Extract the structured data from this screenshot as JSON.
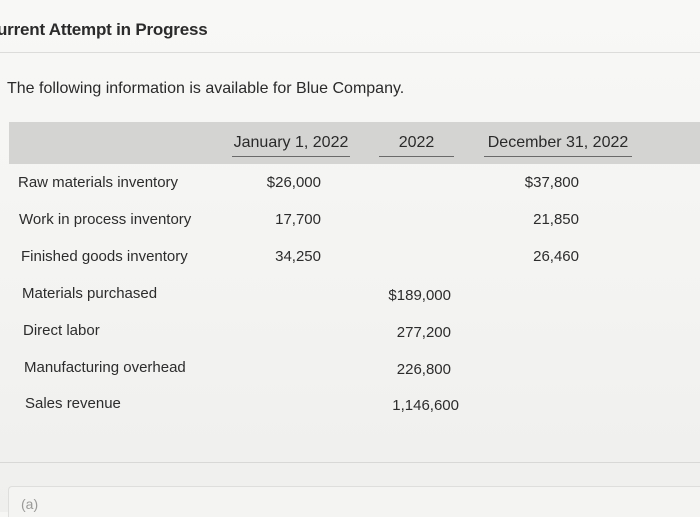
{
  "header": {
    "title": "urrent Attempt in Progress"
  },
  "intro_text": "The following information is available for Blue Company.",
  "table": {
    "columns": [
      "January 1, 2022",
      "2022",
      "December 31, 2022"
    ],
    "rows": [
      {
        "label": "Raw materials inventory",
        "jan": "$26,000",
        "year": "",
        "dec": "$37,800"
      },
      {
        "label": "Work in process inventory",
        "jan": "17,700",
        "year": "",
        "dec": "21,850"
      },
      {
        "label": "Finished goods inventory",
        "jan": "34,250",
        "year": "",
        "dec": "26,460"
      },
      {
        "label": "Materials purchased",
        "jan": "",
        "year": "$189,000",
        "dec": ""
      },
      {
        "label": "Direct labor",
        "jan": "",
        "year": "277,200",
        "dec": ""
      },
      {
        "label": "Manufacturing overhead",
        "jan": "",
        "year": "226,800",
        "dec": ""
      },
      {
        "label": "Sales revenue",
        "jan": "",
        "year": "1,146,600",
        "dec": ""
      }
    ]
  },
  "part_label": "(a)"
}
